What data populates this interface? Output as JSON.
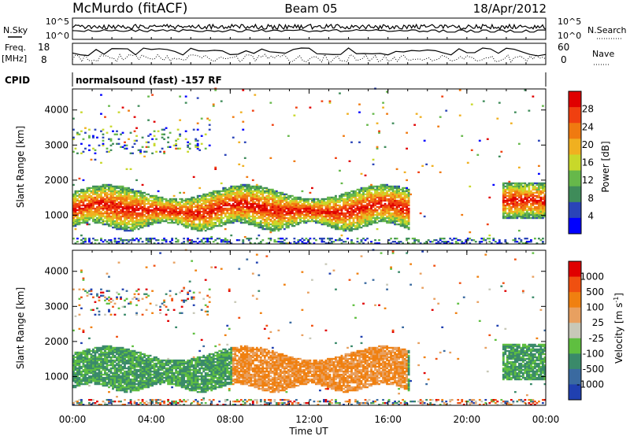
{
  "header": {
    "station": "McMurdo (fitACF)",
    "beam": "Beam 05",
    "date": "18/Apr/2012"
  },
  "aux_panels": {
    "nsky_label": "N.Sky",
    "nsearch_label": "N.Search",
    "noise_ticks_left": [
      "10^5",
      "10^0"
    ],
    "noise_ticks_right": [
      "10^5",
      "10^0"
    ],
    "freq_label_line1": "Freq.",
    "freq_label_line2": "[MHz]",
    "freq_ticks": [
      "18",
      "8"
    ],
    "nave_label": "Nave",
    "nave_ticks": [
      "60",
      "0"
    ],
    "cpid_label": "CPID",
    "cpid_text": "normalsound (fast) -157 RF"
  },
  "colors": {
    "power_scale": [
      "#0000ff",
      "#2a44b8",
      "#3f8c5a",
      "#66b84a",
      "#c8d82a",
      "#f0b020",
      "#f07a10",
      "#f04010",
      "#e00000"
    ],
    "velocity_scale": [
      "#2040b0",
      "#3a6aa0",
      "#3a8a6a",
      "#5fbf40",
      "#c8c8b8",
      "#e8a060",
      "#f08010",
      "#f05010",
      "#e00000"
    ]
  },
  "chart_data": [
    {
      "type": "heatmap",
      "name": "power",
      "ylabel": "Slant Range [km]",
      "ylim": [
        180,
        4600
      ],
      "yticks": [
        "1000",
        "2000",
        "3000",
        "4000"
      ],
      "xlim": [
        "00:00",
        "24:00"
      ],
      "colorbar_label": "Power [dB]",
      "colorbar_ticks": [
        "4",
        "8",
        "12",
        "16",
        "20",
        "24",
        "28"
      ],
      "colorbar_range": [
        0,
        30
      ]
    },
    {
      "type": "heatmap",
      "name": "velocity",
      "ylabel": "Slant Range [km]",
      "ylim": [
        180,
        4600
      ],
      "yticks": [
        "1000",
        "2000",
        "3000",
        "4000"
      ],
      "xlim": [
        "00:00",
        "24:00"
      ],
      "colorbar_label": "Velocity [m s",
      "colorbar_label_sup": "-1",
      "colorbar_label_end": "]",
      "colorbar_ticks": [
        "1000",
        "500",
        "100",
        "25",
        "-25",
        "-100",
        "-500",
        "-1000"
      ]
    }
  ],
  "xaxis": {
    "ticks": [
      "00:00",
      "04:00",
      "08:00",
      "12:00",
      "16:00",
      "20:00",
      "00:00"
    ],
    "label": "Time UT"
  }
}
